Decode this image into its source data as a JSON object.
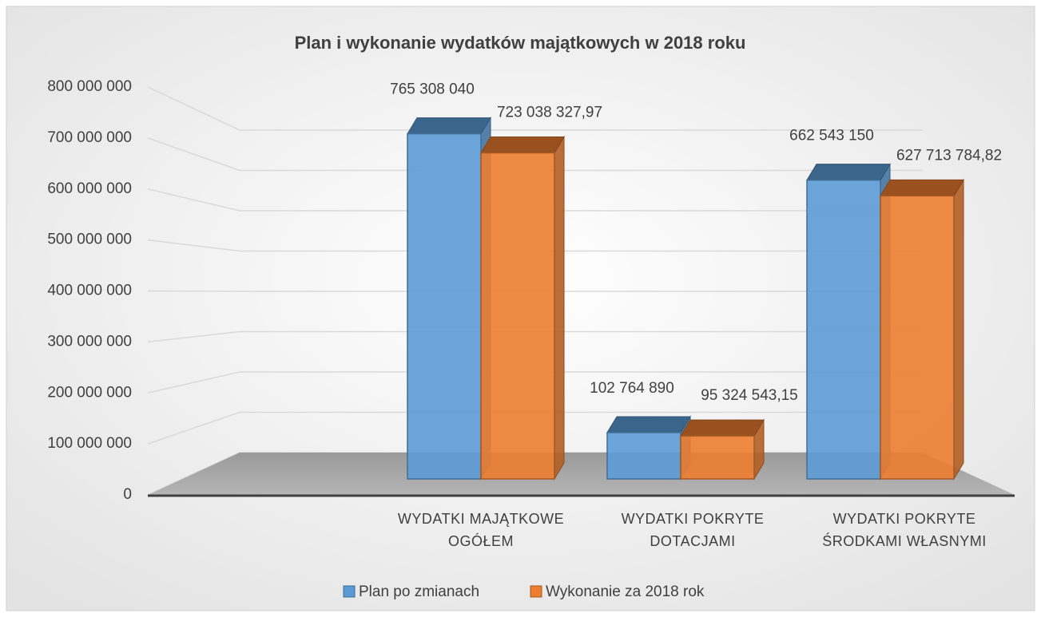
{
  "chart_data": {
    "type": "bar3d",
    "title": "Plan i wykonanie wydatków majątkowych w 2018 roku",
    "categories": [
      "WYDATKI MAJĄTKOWE OGÓŁEM",
      "WYDATKI POKRYTE DOTACJAMI",
      "WYDATKI POKRYTE ŚRODKAMI WŁASNYMI"
    ],
    "series": [
      {
        "name": "Plan po zmianach",
        "color": "#5b9bd5",
        "values": [
          765308040,
          102764890,
          662543150
        ],
        "value_labels": [
          "765 308 040",
          "102 764 890",
          "662 543 150"
        ]
      },
      {
        "name": "Wykonanie za 2018 rok",
        "color": "#ed7d31",
        "values": [
          723038327.97,
          95324543.15,
          627713784.82
        ],
        "value_labels": [
          "723 038 327,97",
          "95 324 543,15",
          "627 713 784,82"
        ]
      }
    ],
    "ylim": [
      0,
      800000000
    ],
    "yticks": [
      0,
      {
        "value": 100000000,
        "label": "100 000 000"
      },
      {
        "value": 200000000,
        "label": "200 000 000"
      },
      {
        "value": 300000000,
        "label": "300 000 000"
      },
      {
        "value": 400000000,
        "label": "400 000 000"
      },
      {
        "value": 500000000,
        "label": "500 000 000"
      },
      {
        "value": 600000000,
        "label": "600 000 000"
      },
      {
        "value": 700000000,
        "label": "700 000 000"
      },
      {
        "value": 800000000,
        "label": "800 000 000"
      }
    ],
    "grid": true,
    "legend": "bottom"
  }
}
